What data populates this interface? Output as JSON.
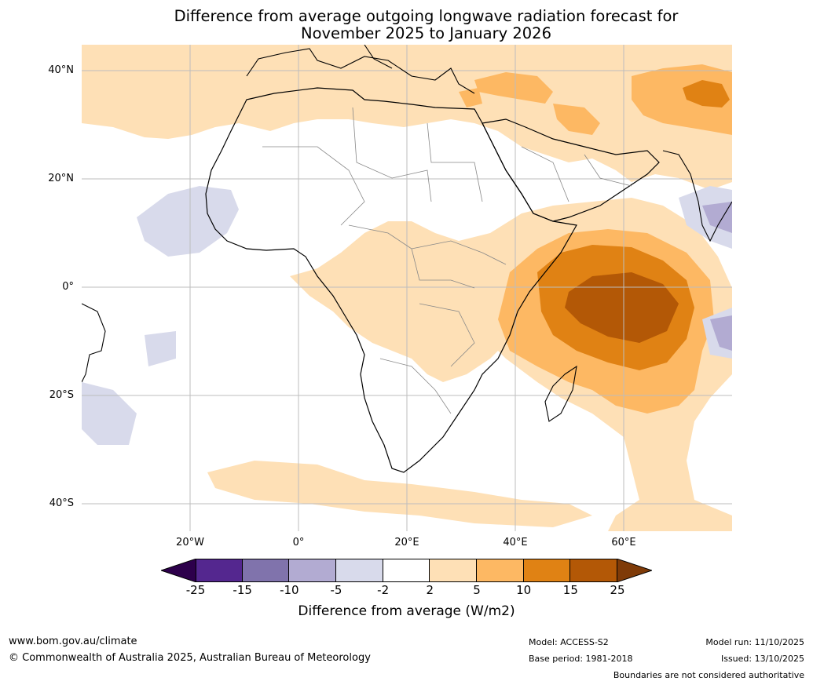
{
  "title": {
    "line1": "Difference from average outgoing longwave radiation forecast for",
    "line2": "November 2025 to January 2026"
  },
  "map": {
    "lat_labels": [
      "40°N",
      "20°N",
      "0°",
      "20°S",
      "40°S"
    ],
    "lon_labels": [
      "20°W",
      "0°",
      "20°E",
      "40°E",
      "60°E"
    ],
    "region": "Africa and Indian Ocean"
  },
  "colorbar": {
    "ticks": [
      "-25",
      "-15",
      "-10",
      "-5",
      "-2",
      "2",
      "5",
      "10",
      "15",
      "25"
    ],
    "colors": [
      "#54278f",
      "#8073ac",
      "#b2abd2",
      "#d8daeb",
      "#ffffff",
      "#fee0b6",
      "#fdb863",
      "#e08214",
      "#b35806"
    ],
    "under_color": "#2d004b",
    "over_color": "#7f3b08",
    "label": "Difference from average (W/m2)"
  },
  "footer": {
    "url": "www.bom.gov.au/climate",
    "copyright": "© Commonwealth of Australia 2025, Australian Bureau of Meteorology",
    "model": "Model: ACCESS-S2",
    "base_period": "Base period: 1981-2018",
    "model_run": "Model run: 11/10/2025",
    "issued": "Issued: 13/10/2025",
    "disclaimer": "Boundaries are not considered authoritative"
  }
}
